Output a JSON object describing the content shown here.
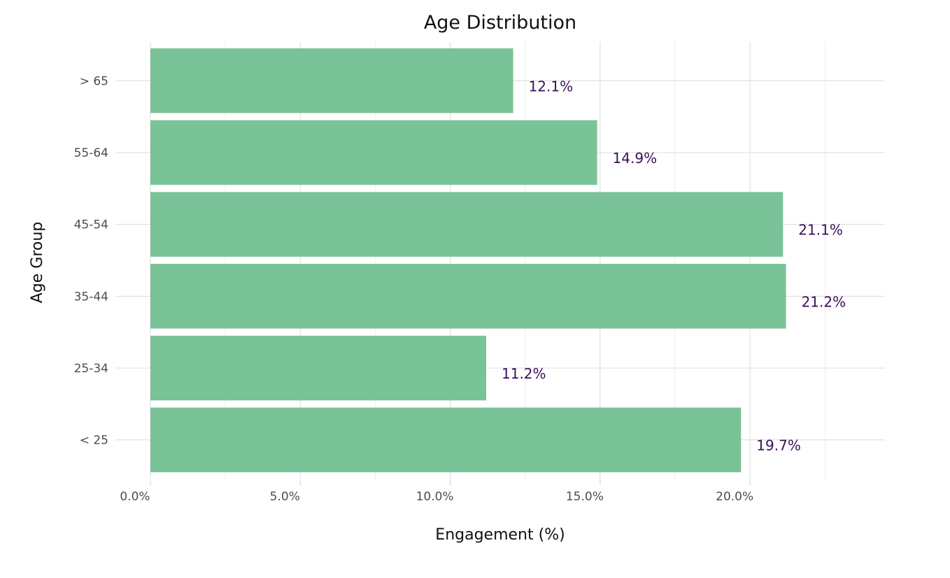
{
  "chart_data": {
    "type": "bar",
    "orientation": "horizontal",
    "title": "Age Distribution",
    "xlabel": "Engagement (%)",
    "ylabel": "Age Group",
    "categories": [
      "< 25",
      "25-34",
      "35-44",
      "45-54",
      "55-64",
      "> 65"
    ],
    "values": [
      19.7,
      11.2,
      21.2,
      21.1,
      14.9,
      12.1
    ],
    "data_labels": [
      "19.7%",
      "11.2%",
      "21.2%",
      "21.1%",
      "14.9%",
      "12.1%"
    ],
    "xlim": [
      0,
      24.5
    ],
    "x_ticks": [
      0,
      5,
      10,
      15,
      20
    ],
    "x_tick_labels": [
      "0.0%",
      "5.0%",
      "10.0%",
      "15.0%",
      "20.0%"
    ],
    "grid": true,
    "legend": "none",
    "colors": {
      "bar": "#7ac297",
      "data_label": "#3b0f5a"
    }
  }
}
